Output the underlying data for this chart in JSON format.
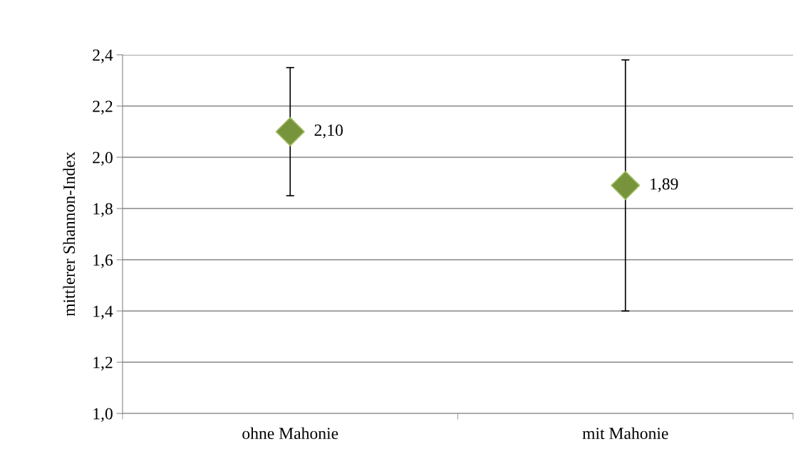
{
  "chart_data": {
    "type": "scatter",
    "ylabel": "mittlerer Shannon-Index",
    "categories": [
      "ohne Mahonie",
      "mit Mahonie"
    ],
    "series": [
      {
        "color": "#77933c",
        "values": [
          2.1,
          1.89
        ],
        "errors": [
          [
            1.85,
            2.35
          ],
          [
            1.4,
            2.38
          ]
        ],
        "value_labels": [
          "2,10",
          "1,89"
        ]
      }
    ],
    "ylim": [
      1.0,
      2.4
    ],
    "yticks": [
      {
        "value": 1.0,
        "label": "1,0"
      },
      {
        "value": 1.2,
        "label": "1,2"
      },
      {
        "value": 1.4,
        "label": "1,4"
      },
      {
        "value": 1.6,
        "label": "1,6"
      },
      {
        "value": 1.8,
        "label": "1,8"
      },
      {
        "value": 2.0,
        "label": "2,0"
      },
      {
        "value": 2.2,
        "label": "2,2"
      },
      {
        "value": 2.4,
        "label": "2,4"
      }
    ],
    "grid": "y",
    "marker": "diamond",
    "legend": false
  }
}
